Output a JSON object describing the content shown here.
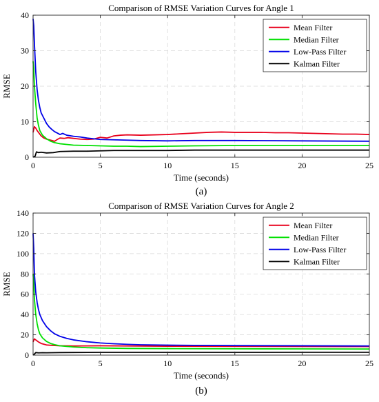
{
  "chart_data": [
    {
      "type": "line",
      "title": "Comparison of RMSE Variation Curves for Angle 1",
      "caption": "(a)",
      "xlabel": "Time (seconds)",
      "ylabel": "RMSE",
      "xlim": [
        0,
        25
      ],
      "ylim": [
        0,
        40
      ],
      "xticks": [
        0,
        5,
        10,
        15,
        20,
        25
      ],
      "yticks": [
        0,
        10,
        20,
        30,
        40
      ],
      "grid": true,
      "legend_position": "top-right",
      "series": [
        {
          "name": "Mean Filter",
          "color": "#e8001c",
          "points": [
            [
              0,
              7
            ],
            [
              0.1,
              8.6
            ],
            [
              0.2,
              8.2
            ],
            [
              0.3,
              7.5
            ],
            [
              0.4,
              7.0
            ],
            [
              0.5,
              6.5
            ],
            [
              0.6,
              6.0
            ],
            [
              0.8,
              5.4
            ],
            [
              1.0,
              5.1
            ],
            [
              1.2,
              4.9
            ],
            [
              1.4,
              4.7
            ],
            [
              1.6,
              4.5
            ],
            [
              1.8,
              5.0
            ],
            [
              2.0,
              5.4
            ],
            [
              2.3,
              5.3
            ],
            [
              2.6,
              5.5
            ],
            [
              3.0,
              5.3
            ],
            [
              3.5,
              5.1
            ],
            [
              4.0,
              5.0
            ],
            [
              4.5,
              5.1
            ],
            [
              5.0,
              5.6
            ],
            [
              5.5,
              5.4
            ],
            [
              6.0,
              6.0
            ],
            [
              6.5,
              6.2
            ],
            [
              7.0,
              6.3
            ],
            [
              8.0,
              6.2
            ],
            [
              9.0,
              6.3
            ],
            [
              10.0,
              6.4
            ],
            [
              11.0,
              6.6
            ],
            [
              12.0,
              6.8
            ],
            [
              13.0,
              7.0
            ],
            [
              14.0,
              7.1
            ],
            [
              15.0,
              7.0
            ],
            [
              16.0,
              7.0
            ],
            [
              17.0,
              7.0
            ],
            [
              18.0,
              6.9
            ],
            [
              19.0,
              6.9
            ],
            [
              20.0,
              6.8
            ],
            [
              21.0,
              6.7
            ],
            [
              22.0,
              6.6
            ],
            [
              23.0,
              6.5
            ],
            [
              24.0,
              6.5
            ],
            [
              25.0,
              6.4
            ]
          ]
        },
        {
          "name": "Median Filter",
          "color": "#00e000",
          "points": [
            [
              0,
              27
            ],
            [
              0.05,
              25
            ],
            [
              0.1,
              20
            ],
            [
              0.2,
              15
            ],
            [
              0.3,
              11
            ],
            [
              0.4,
              9
            ],
            [
              0.5,
              7.5
            ],
            [
              0.7,
              6.2
            ],
            [
              1.0,
              5.2
            ],
            [
              1.3,
              4.5
            ],
            [
              1.6,
              4.1
            ],
            [
              2.0,
              3.8
            ],
            [
              2.5,
              3.6
            ],
            [
              3.0,
              3.4
            ],
            [
              4.0,
              3.3
            ],
            [
              5.0,
              3.2
            ],
            [
              6.0,
              3.1
            ],
            [
              7.0,
              3.1
            ],
            [
              8.0,
              3.0
            ],
            [
              10.0,
              3.1
            ],
            [
              12.0,
              3.2
            ],
            [
              15.0,
              3.3
            ],
            [
              20.0,
              3.3
            ],
            [
              25.0,
              3.3
            ]
          ]
        },
        {
          "name": "Low-Pass Filter",
          "color": "#0000e8",
          "points": [
            [
              0,
              39
            ],
            [
              0.05,
              37
            ],
            [
              0.1,
              32
            ],
            [
              0.2,
              24
            ],
            [
              0.3,
              19
            ],
            [
              0.4,
              16
            ],
            [
              0.5,
              14
            ],
            [
              0.6,
              12.5
            ],
            [
              0.8,
              11
            ],
            [
              1.0,
              9.5
            ],
            [
              1.2,
              8.5
            ],
            [
              1.4,
              7.8
            ],
            [
              1.6,
              7.2
            ],
            [
              1.8,
              6.8
            ],
            [
              2.0,
              6.4
            ],
            [
              2.2,
              6.7
            ],
            [
              2.5,
              6.2
            ],
            [
              3.0,
              5.9
            ],
            [
              3.5,
              5.7
            ],
            [
              4.0,
              5.4
            ],
            [
              4.5,
              5.2
            ],
            [
              5.0,
              5.0
            ],
            [
              6.0,
              4.9
            ],
            [
              7.0,
              4.8
            ],
            [
              8.0,
              4.7
            ],
            [
              10.0,
              4.6
            ],
            [
              12.0,
              4.7
            ],
            [
              15.0,
              4.7
            ],
            [
              20.0,
              4.6
            ],
            [
              25.0,
              4.5
            ]
          ]
        },
        {
          "name": "Kalman Filter",
          "color": "#000000",
          "points": [
            [
              0,
              0.0
            ],
            [
              0.15,
              0.3
            ],
            [
              0.25,
              1.5
            ],
            [
              0.4,
              1.3
            ],
            [
              0.6,
              1.4
            ],
            [
              1.0,
              1.2
            ],
            [
              1.5,
              1.3
            ],
            [
              2.0,
              1.6
            ],
            [
              3.0,
              1.7
            ],
            [
              4.0,
              1.7
            ],
            [
              5.0,
              1.8
            ],
            [
              6.0,
              1.9
            ],
            [
              8.0,
              1.9
            ],
            [
              10.0,
              1.9
            ],
            [
              12.0,
              2.0
            ],
            [
              15.0,
              2.0
            ],
            [
              20.0,
              2.0
            ],
            [
              25.0,
              2.0
            ]
          ]
        }
      ]
    },
    {
      "type": "line",
      "title": "Comparison of RMSE Variation Curves for Angle 2",
      "caption": "(b)",
      "xlabel": "Time (seconds)",
      "ylabel": "RMSE",
      "xlim": [
        0,
        25
      ],
      "ylim": [
        0,
        140
      ],
      "xticks": [
        0,
        5,
        10,
        15,
        20,
        25
      ],
      "yticks": [
        0,
        20,
        40,
        60,
        80,
        100,
        120,
        140
      ],
      "grid": true,
      "legend_position": "top-right",
      "series": [
        {
          "name": "Mean Filter",
          "color": "#e8001c",
          "points": [
            [
              0,
              13
            ],
            [
              0.1,
              16
            ],
            [
              0.2,
              15
            ],
            [
              0.4,
              13
            ],
            [
              0.6,
              11.5
            ],
            [
              1.0,
              10
            ],
            [
              1.5,
              9.5
            ],
            [
              2.0,
              9.2
            ],
            [
              3.0,
              9
            ],
            [
              5.0,
              9.2
            ],
            [
              7.0,
              9
            ],
            [
              10.0,
              8.8
            ],
            [
              15.0,
              8.6
            ],
            [
              20.0,
              8.5
            ],
            [
              25.0,
              8.4
            ]
          ]
        },
        {
          "name": "Median Filter",
          "color": "#00e000",
          "points": [
            [
              0,
              80
            ],
            [
              0.05,
              72
            ],
            [
              0.1,
              55
            ],
            [
              0.2,
              40
            ],
            [
              0.3,
              31
            ],
            [
              0.4,
              25
            ],
            [
              0.5,
              21
            ],
            [
              0.7,
              17
            ],
            [
              1.0,
              13.5
            ],
            [
              1.3,
              11.5
            ],
            [
              1.6,
              10.3
            ],
            [
              2.0,
              9.2
            ],
            [
              3.0,
              8
            ],
            [
              4.0,
              7.3
            ],
            [
              5.0,
              7.0
            ],
            [
              7.0,
              6.6
            ],
            [
              10.0,
              6.4
            ],
            [
              15.0,
              6.2
            ],
            [
              20.0,
              6.1
            ],
            [
              25.0,
              6.0
            ]
          ]
        },
        {
          "name": "Low-Pass Filter",
          "color": "#0000e8",
          "points": [
            [
              0,
              120
            ],
            [
              0.05,
              105
            ],
            [
              0.1,
              80
            ],
            [
              0.2,
              62
            ],
            [
              0.3,
              52
            ],
            [
              0.4,
              45
            ],
            [
              0.5,
              40
            ],
            [
              0.7,
              34
            ],
            [
              1.0,
              28
            ],
            [
              1.3,
              24
            ],
            [
              1.6,
              21
            ],
            [
              2.0,
              18.5
            ],
            [
              2.5,
              16.5
            ],
            [
              3.0,
              15
            ],
            [
              4.0,
              13.2
            ],
            [
              5.0,
              12
            ],
            [
              6.0,
              11.2
            ],
            [
              7.0,
              10.6
            ],
            [
              8.0,
              10.2
            ],
            [
              10.0,
              9.8
            ],
            [
              12.0,
              9.6
            ],
            [
              15.0,
              9.4
            ],
            [
              20.0,
              9.2
            ],
            [
              25.0,
              9.0
            ]
          ]
        },
        {
          "name": "Kalman Filter",
          "color": "#000000",
          "points": [
            [
              0,
              0
            ],
            [
              0.1,
              1
            ],
            [
              0.2,
              2.5
            ],
            [
              0.4,
              2.2
            ],
            [
              0.7,
              2.4
            ],
            [
              1.0,
              2.3
            ],
            [
              2.0,
              2.5
            ],
            [
              3.0,
              2.6
            ],
            [
              5.0,
              2.7
            ],
            [
              10.0,
              2.7
            ],
            [
              15.0,
              2.7
            ],
            [
              20.0,
              2.8
            ],
            [
              25.0,
              2.8
            ]
          ]
        }
      ]
    }
  ]
}
